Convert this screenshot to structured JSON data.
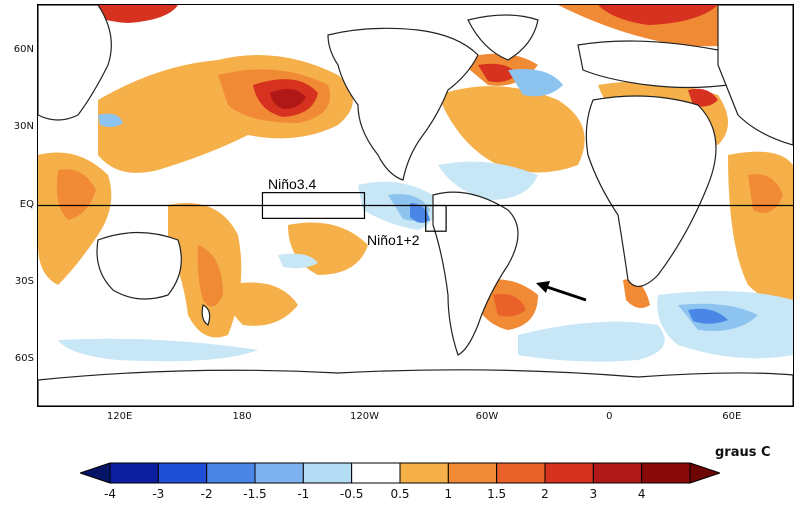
{
  "map": {
    "lat_labels": [
      {
        "text": "60N",
        "lat": 60
      },
      {
        "text": "30N",
        "lat": 30
      },
      {
        "text": "EQ",
        "lat": 0
      },
      {
        "text": "30S",
        "lat": -30
      },
      {
        "text": "60S",
        "lat": -60
      }
    ],
    "lon_labels": [
      {
        "text": "120E",
        "lon": 120
      },
      {
        "text": "180",
        "lon": 180
      },
      {
        "text": "120W",
        "lon": 240
      },
      {
        "text": "60W",
        "lon": 300
      },
      {
        "text": "0",
        "lon": 360
      },
      {
        "text": "60E",
        "lon": 420
      }
    ],
    "regions": [
      {
        "name": "Niño3.4",
        "lon_min": 190,
        "lon_max": 240,
        "lat_min": -5,
        "lat_max": 5
      },
      {
        "name": "Niño1+2",
        "lon_min": 270,
        "lon_max": 280,
        "lat_min": -10,
        "lat_max": 0
      }
    ]
  },
  "colorbar": {
    "units": "graus C",
    "labels": [
      "-4",
      "-3",
      "-2",
      "-1.5",
      "-1",
      "-0.5",
      "0.5",
      "1",
      "1.5",
      "2",
      "3",
      "4"
    ],
    "colors": [
      "#0b1e9e",
      "#1f4fd6",
      "#4a86e6",
      "#7fb3ef",
      "#b4ddf5",
      "#ffffff",
      "#f5b04a",
      "#f08a34",
      "#e8622a",
      "#d7321f",
      "#b01818",
      "#8a0a0a"
    ],
    "low_color": "#061466",
    "high_color": "#6d0505"
  },
  "colors": {
    "land": "#ffffff",
    "coast": "#222222",
    "warm_light": "#f5b04a",
    "warm_mid": "#f08a34",
    "warm_strong": "#e8622a",
    "warm_red": "#d7321f",
    "warm_dark": "#b01818",
    "cool_light": "#c7e7f7",
    "cool_mid": "#8cc3ef",
    "cool_strong": "#4a86e6"
  }
}
